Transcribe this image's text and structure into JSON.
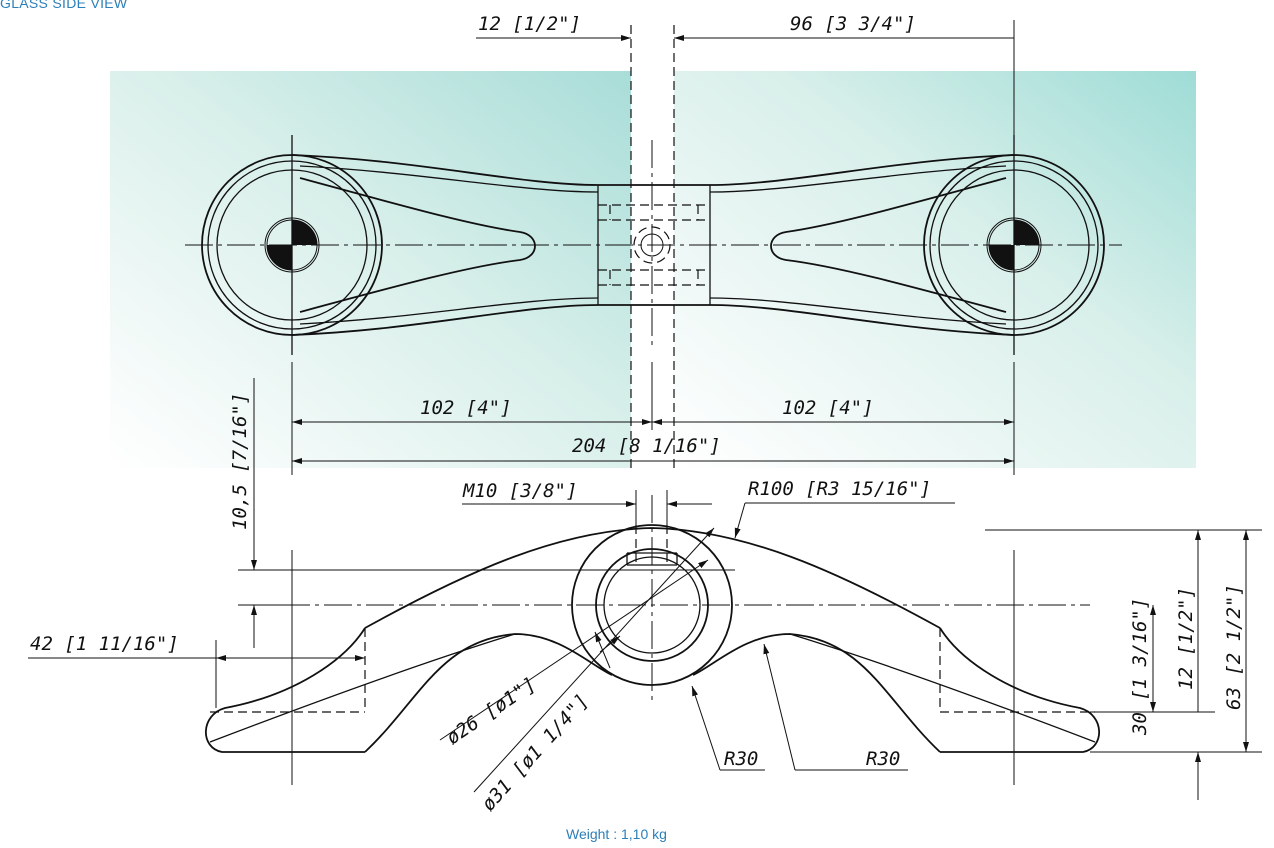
{
  "header": {
    "title": "GLASS SIDE VIEW"
  },
  "footer": {
    "weight": "Weight : 1,10 kg"
  },
  "dimensions": {
    "glass_gap": "12 [1/2\"]",
    "offset_right": "96 [3 3/4\"]",
    "half_left": "102 [4\"]",
    "half_right": "102 [4\"]",
    "total_length": "204 [8 1/16\"]",
    "vertical_offset": "10,5 [7/16\"]",
    "thread": "M10 [3/8\"]",
    "top_radius": "R100 [R3 15/16\"]",
    "edge_offset": "42 [1 11/16\"]",
    "inner_dia": "ø26 [ø1\"]",
    "outer_dia": "ø31 [ø1 1/4\"]",
    "radius_left": "R30",
    "radius_right": "R30",
    "height_30": "30 [1 3/16\"]",
    "height_12": "12 [1/2\"]",
    "height_63": "63 [2 1/2\"]"
  },
  "colors": {
    "glass": "#b8e6e0",
    "accent": "#2c7fb8"
  }
}
